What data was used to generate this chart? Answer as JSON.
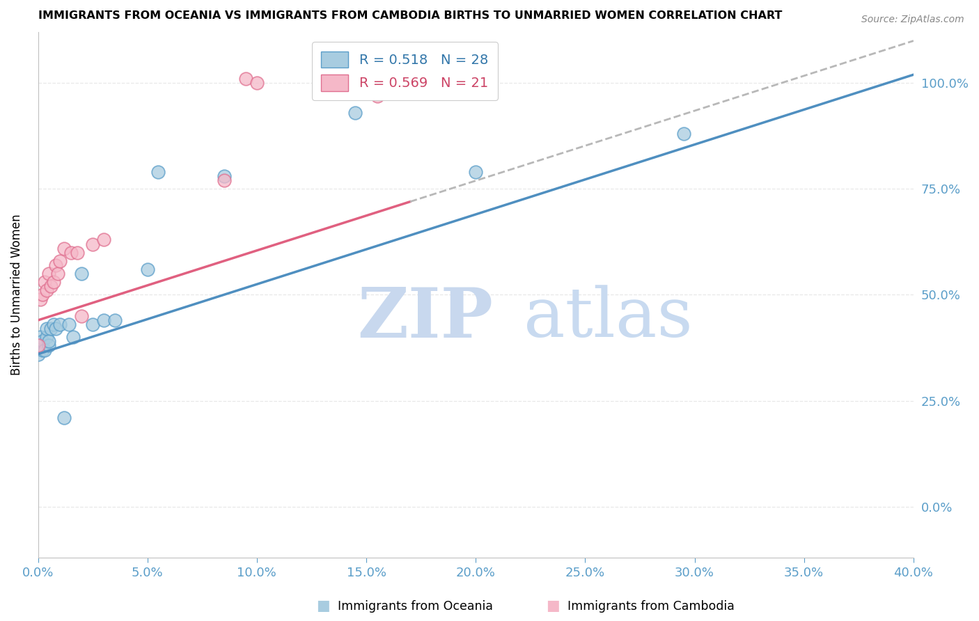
{
  "title": "IMMIGRANTS FROM OCEANIA VS IMMIGRANTS FROM CAMBODIA BIRTHS TO UNMARRIED WOMEN CORRELATION CHART",
  "source": "Source: ZipAtlas.com",
  "ylabel": "Births to Unmarried Women",
  "legend_label1": "Immigrants from Oceania",
  "legend_label2": "Immigrants from Cambodia",
  "R1": 0.518,
  "N1": 28,
  "R2": 0.569,
  "N2": 21,
  "color_blue": "#a8cce0",
  "color_blue_edge": "#5b9ec9",
  "color_blue_line": "#4f8fc0",
  "color_pink": "#f5b8c8",
  "color_pink_edge": "#e07090",
  "color_pink_line": "#e06080",
  "color_dashed_line": "#b8b8b8",
  "color_right_axis": "#5b9ec9",
  "color_bottom_axis": "#5b9ec9",
  "xlim": [
    0.0,
    0.4
  ],
  "ylim": [
    -0.12,
    1.12
  ],
  "yticks": [
    0.0,
    0.25,
    0.5,
    0.75,
    1.0
  ],
  "ytick_labels_right": [
    "0.0%",
    "25.0%",
    "50.0%",
    "75.0%",
    "100.0%"
  ],
  "oceania_x": [
    0.0,
    0.0,
    0.001,
    0.001,
    0.002,
    0.002,
    0.003,
    0.004,
    0.004,
    0.005,
    0.005,
    0.006,
    0.007,
    0.008,
    0.01,
    0.012,
    0.014,
    0.016,
    0.02,
    0.025,
    0.03,
    0.035,
    0.05,
    0.055,
    0.085,
    0.145,
    0.2,
    0.295
  ],
  "oceania_y": [
    0.36,
    0.38,
    0.38,
    0.4,
    0.37,
    0.39,
    0.37,
    0.4,
    0.42,
    0.38,
    0.39,
    0.42,
    0.43,
    0.42,
    0.43,
    0.21,
    0.43,
    0.4,
    0.55,
    0.43,
    0.44,
    0.44,
    0.56,
    0.79,
    0.78,
    0.93,
    0.79,
    0.88
  ],
  "cambodia_x": [
    0.0,
    0.001,
    0.002,
    0.003,
    0.004,
    0.005,
    0.006,
    0.007,
    0.008,
    0.009,
    0.01,
    0.012,
    0.015,
    0.018,
    0.02,
    0.025,
    0.03,
    0.085,
    0.095,
    0.1,
    0.155
  ],
  "cambodia_y": [
    0.38,
    0.49,
    0.5,
    0.53,
    0.51,
    0.55,
    0.52,
    0.53,
    0.57,
    0.55,
    0.58,
    0.61,
    0.6,
    0.6,
    0.45,
    0.62,
    0.63,
    0.77,
    1.01,
    1.0,
    0.97
  ],
  "background_color": "#ffffff",
  "grid_color": "#e8e8e8",
  "watermark_color": "#dce8f5",
  "line1_x0": 0.0,
  "line1_y0": 0.36,
  "line1_x1": 0.4,
  "line1_y1": 1.02,
  "line2_x0": 0.0,
  "line2_y0": 0.44,
  "line2_x1": 0.17,
  "line2_y1": 0.72,
  "line2_dash_x0": 0.17,
  "line2_dash_y0": 0.72,
  "line2_dash_x1": 0.4,
  "line2_dash_y1": 1.1
}
